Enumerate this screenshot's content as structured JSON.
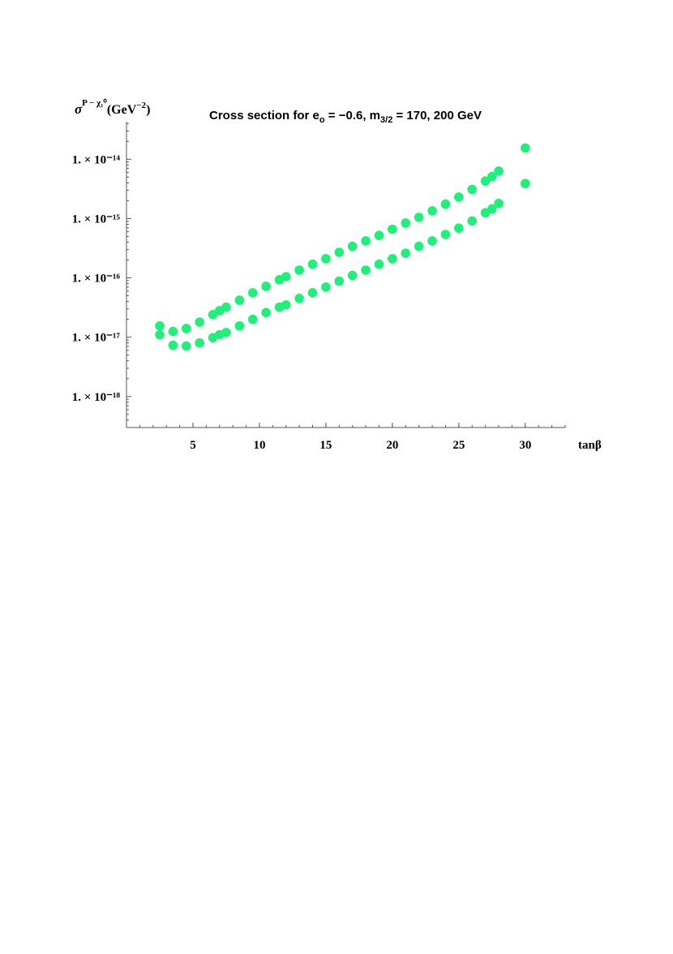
{
  "chart_data": {
    "type": "scatter",
    "title": [
      "Cross section for e",
      "o",
      " = −0.6, m",
      "3/2",
      " = 170, 200 GeV"
    ],
    "ylabel": [
      "σ",
      "P − χ₁⁰",
      "(GeV",
      "−2",
      ")"
    ],
    "xlabel": "tanβ",
    "x": [
      2.5,
      3.5,
      4.5,
      5.5,
      6.5,
      7,
      7.5,
      8.5,
      9.5,
      10.5,
      11.5,
      12,
      13,
      14,
      15,
      16,
      17,
      18,
      19,
      20,
      21,
      22,
      23,
      24,
      25,
      26,
      27,
      27.5,
      28,
      30
    ],
    "series": [
      {
        "color": "#1ef07a",
        "values": [
          1.55e-17,
          1.25e-17,
          1.4e-17,
          1.8e-17,
          2.4e-17,
          2.8e-17,
          3.2e-17,
          4.2e-17,
          5.6e-17,
          7.2e-17,
          9.3e-17,
          1.05e-16,
          1.35e-16,
          1.7e-16,
          2.1e-16,
          2.7e-16,
          3.4e-16,
          4.2e-16,
          5.2e-16,
          6.6e-16,
          8.4e-16,
          1.05e-15,
          1.35e-15,
          1.75e-15,
          2.3e-15,
          3.1e-15,
          4.3e-15,
          5.1e-15,
          6.3e-15,
          1.55e-14
        ]
      },
      {
        "color": "#1ef07a",
        "values": [
          1.1e-17,
          7.3e-18,
          7.1e-18,
          8e-18,
          9.8e-18,
          1.1e-17,
          1.2e-17,
          1.55e-17,
          2e-17,
          2.6e-17,
          3.2e-17,
          3.5e-17,
          4.5e-17,
          5.6e-17,
          7e-17,
          8.8e-17,
          1.1e-16,
          1.35e-16,
          1.7e-16,
          2.1e-16,
          2.6e-16,
          3.4e-16,
          4.2e-16,
          5.4e-16,
          6.9e-16,
          9.1e-16,
          1.25e-15,
          1.45e-15,
          1.8e-15,
          3.9e-15
        ]
      }
    ],
    "xlim": [
      0,
      33
    ],
    "xticks": [
      5,
      10,
      15,
      20,
      25,
      30
    ],
    "ylim": [
      3e-19,
      4.3e-14
    ],
    "ylog": true,
    "yticks": [
      {
        "value": 1e-18,
        "label": "1. × 10⁻¹⁸"
      },
      {
        "value": 1e-17,
        "label": "1. × 10⁻¹⁷"
      },
      {
        "value": 1e-16,
        "label": "1. × 10⁻¹⁶"
      },
      {
        "value": 1e-15,
        "label": "1. × 10⁻¹⁵"
      },
      {
        "value": 1e-14,
        "label": "1. × 10⁻¹⁴"
      }
    ]
  }
}
